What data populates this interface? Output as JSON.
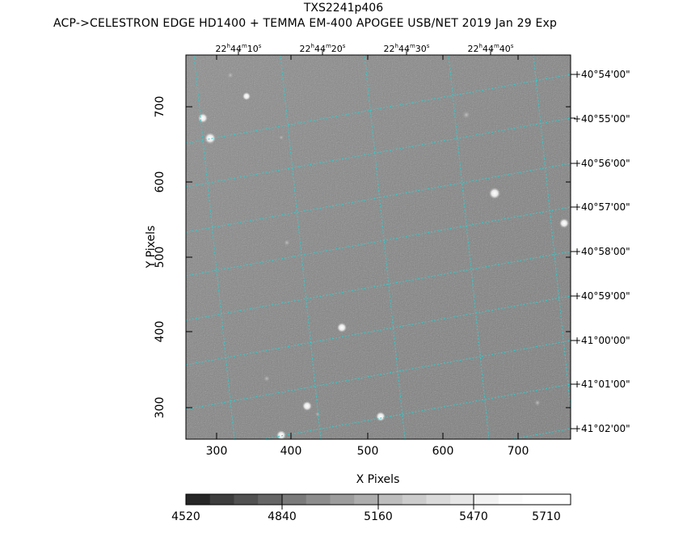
{
  "title": "TXS2241p406",
  "subtitle": "ACP->CELESTRON EDGE HD1400 + TEMMA EM-400 APOGEE USB/NET   2019 Jan 29    Exp",
  "x_axis": {
    "label": "X Pixels",
    "ticks": [
      "300",
      "400",
      "500",
      "600",
      "700"
    ]
  },
  "y_axis": {
    "label": "Y Pixels",
    "ticks": [
      "700",
      "600",
      "500",
      "400",
      "300"
    ]
  },
  "ra_ticks": [
    {
      "h": "22",
      "m": "44",
      "s": "10"
    },
    {
      "h": "22",
      "m": "44",
      "s": "20"
    },
    {
      "h": "22",
      "m": "44",
      "s": "30"
    },
    {
      "h": "22",
      "m": "44",
      "s": "40"
    }
  ],
  "dec_ticks": [
    "+40°54'00\"",
    "+40°55'00\"",
    "+40°56'00\"",
    "+40°57'00\"",
    "+40°58'00\"",
    "+40°59'00\"",
    "+41°00'00\"",
    "+41°01'00\"",
    "+41°02'00\""
  ],
  "colorbar": {
    "labels": [
      "4520",
      "4840",
      "5160",
      "5470",
      "5710"
    ]
  },
  "colors": {
    "grid": "#33cccc",
    "background": "#ffffff"
  }
}
